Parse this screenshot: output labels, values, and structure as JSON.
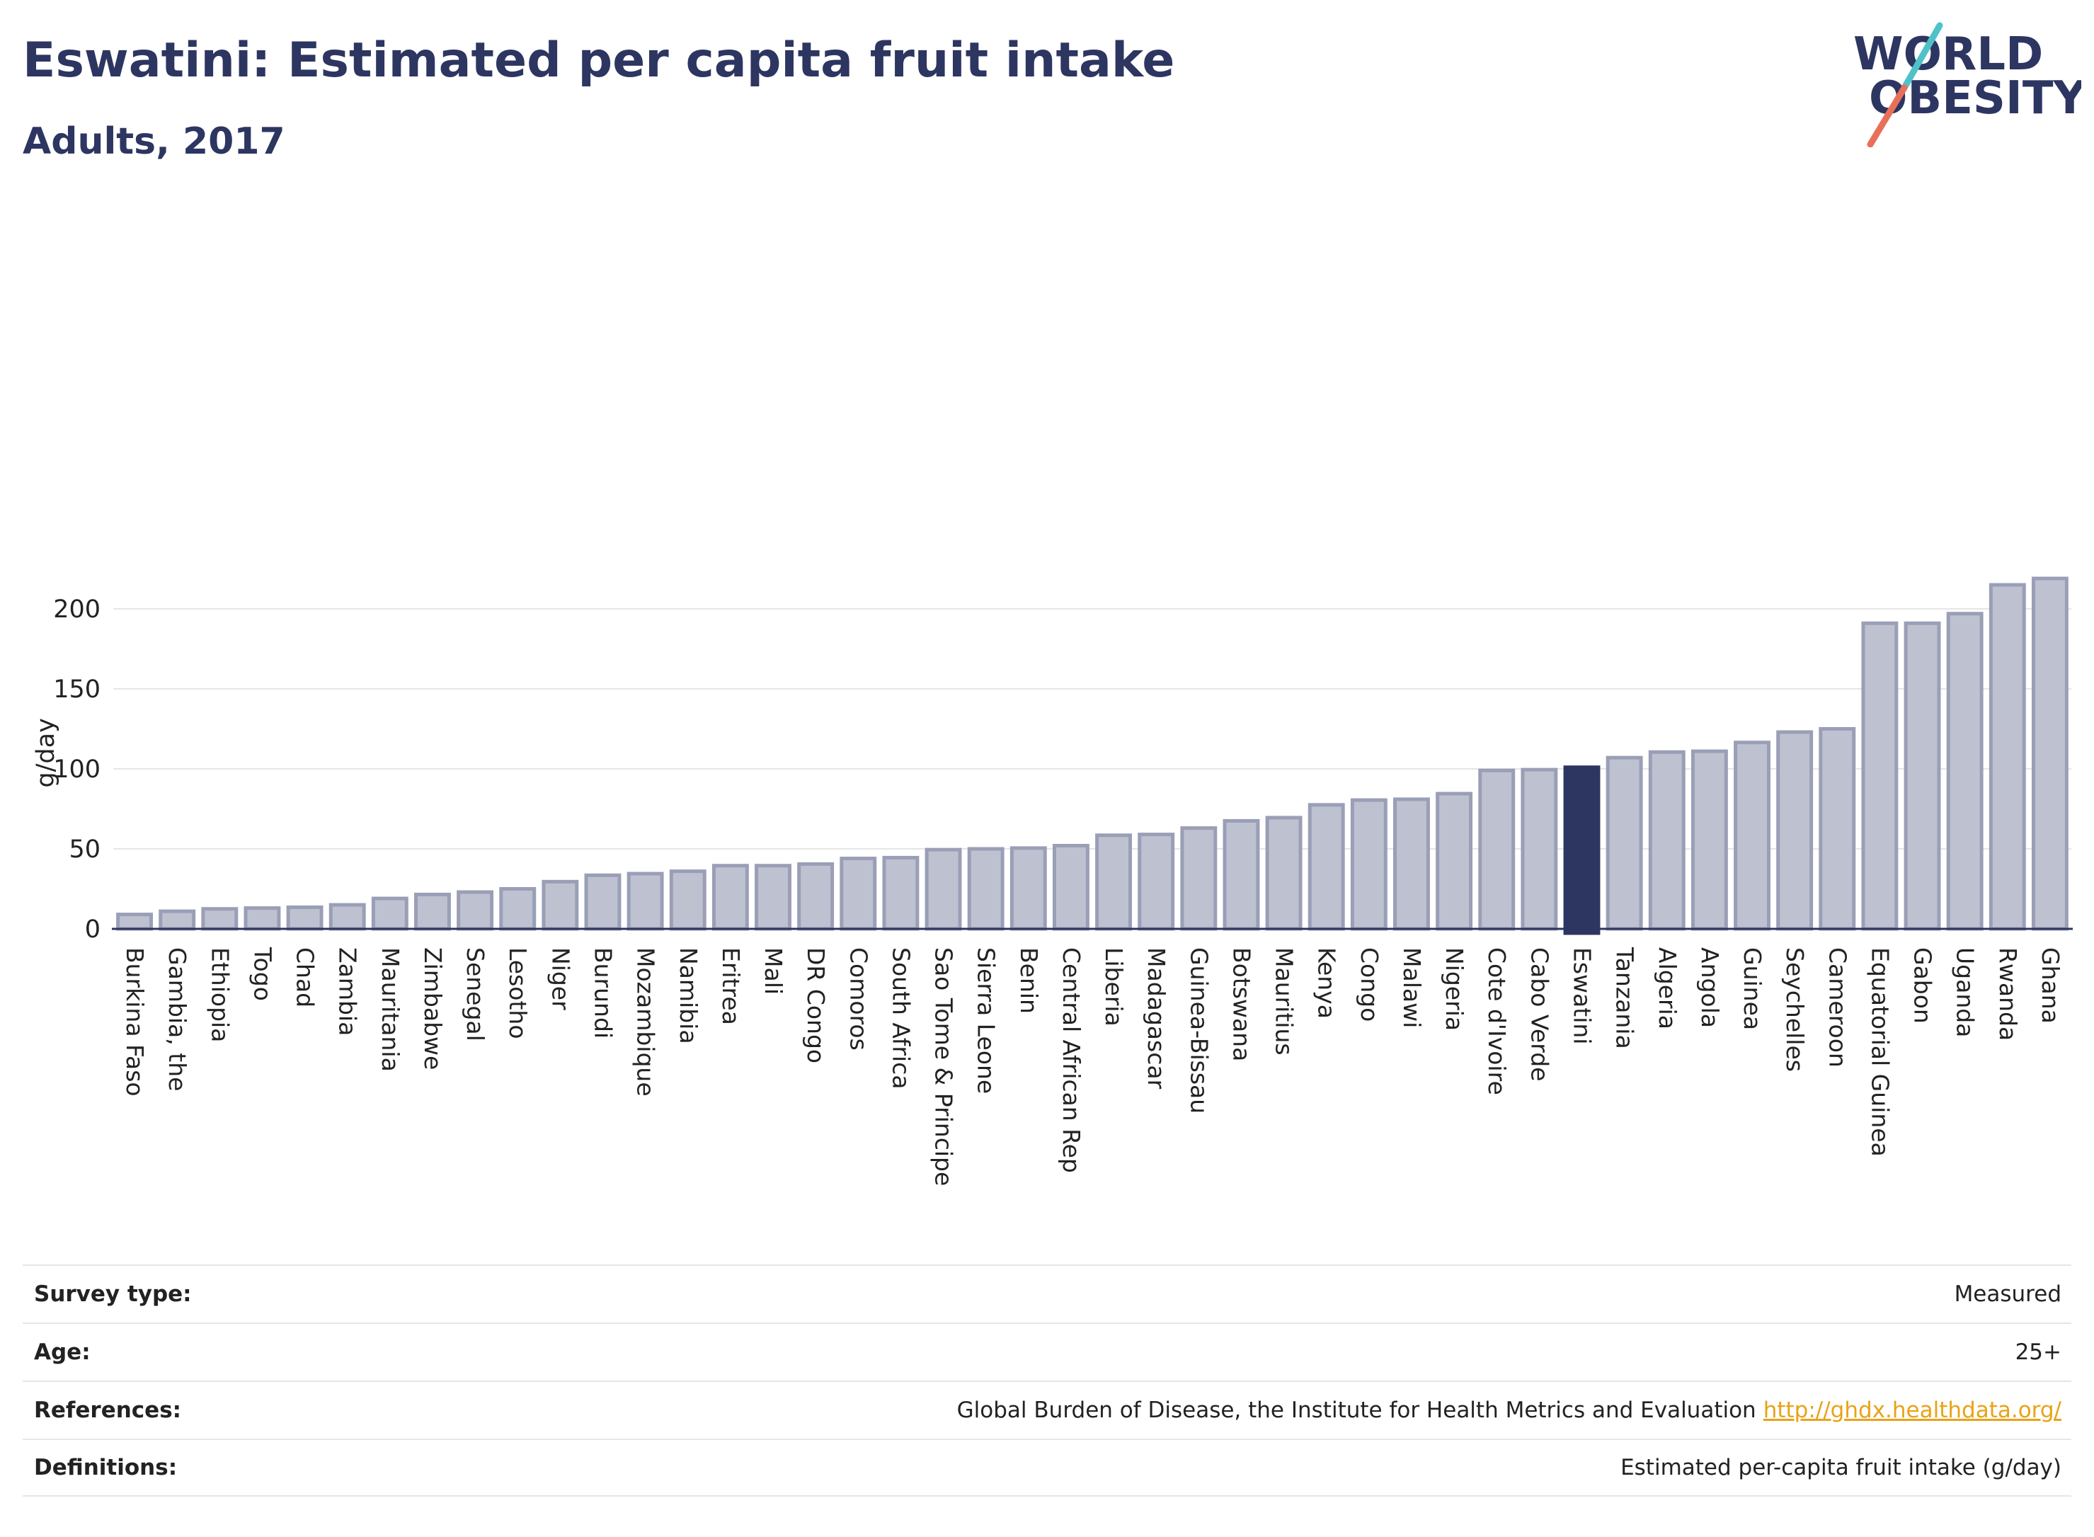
{
  "header": {
    "title": "Eswatini: Estimated per capita fruit intake",
    "subtitle": "Adults, 2017"
  },
  "logo": {
    "line1": "WORLD",
    "line2": "OBESITY",
    "colors": {
      "text": "#2d3561",
      "slash_top": "#4fc1c9",
      "slash_bottom": "#e8705a"
    }
  },
  "chart_data": {
    "type": "bar",
    "title": "Eswatini: Estimated per capita fruit intake",
    "subtitle": "Adults, 2017",
    "ylabel": "g/day",
    "xlabel": "",
    "ylim": [
      0,
      220
    ],
    "yticks": [
      0,
      50,
      100,
      150,
      200
    ],
    "grid": true,
    "highlight": "Eswatini",
    "colors": {
      "bar": "#bec1d0",
      "bar_edge": "#9a9fb7",
      "highlight": "#2d3561"
    },
    "categories": [
      "Burkina Faso",
      "Gambia, the",
      "Ethiopia",
      "Togo",
      "Chad",
      "Zambia",
      "Mauritania",
      "Zimbabwe",
      "Senegal",
      "Lesotho",
      "Niger",
      "Burundi",
      "Mozambique",
      "Namibia",
      "Eritrea",
      "Mali",
      "DR Congo",
      "Comoros",
      "South Africa",
      "Sao Tome & Principe",
      "Sierra Leone",
      "Benin",
      "Central African Rep",
      "Liberia",
      "Madagascar",
      "Guinea-Bissau",
      "Botswana",
      "Mauritius",
      "Kenya",
      "Congo",
      "Malawi",
      "Nigeria",
      "Cote d'Ivoire",
      "Cabo Verde",
      "Eswatini",
      "Tanzania",
      "Algeria",
      "Angola",
      "Guinea",
      "Seychelles",
      "Cameroon",
      "Equatorial Guinea",
      "Gabon",
      "Uganda",
      "Rwanda",
      "Ghana"
    ],
    "values": [
      9,
      11,
      12.5,
      13,
      13.5,
      15,
      19,
      21.5,
      23,
      25,
      29.5,
      33.5,
      34.5,
      36,
      39.5,
      39.5,
      40.5,
      44,
      44.5,
      49.5,
      50,
      50.5,
      52,
      58.5,
      59,
      63,
      67.5,
      69.5,
      77.5,
      80.5,
      81,
      84.5,
      99,
      99.5,
      101,
      107,
      110.5,
      111,
      116.5,
      123,
      125,
      191,
      191,
      197,
      215,
      219
    ]
  },
  "metadata": [
    {
      "label": "Survey type:",
      "value": "Measured"
    },
    {
      "label": "Age:",
      "value": "25+"
    },
    {
      "label": "References:",
      "value": "Global Burden of Disease, the Institute for Health Metrics and Evaluation",
      "link": "http://ghdx.healthdata.org/"
    },
    {
      "label": "Definitions:",
      "value": "Estimated per-capita fruit intake (g/day)"
    }
  ]
}
